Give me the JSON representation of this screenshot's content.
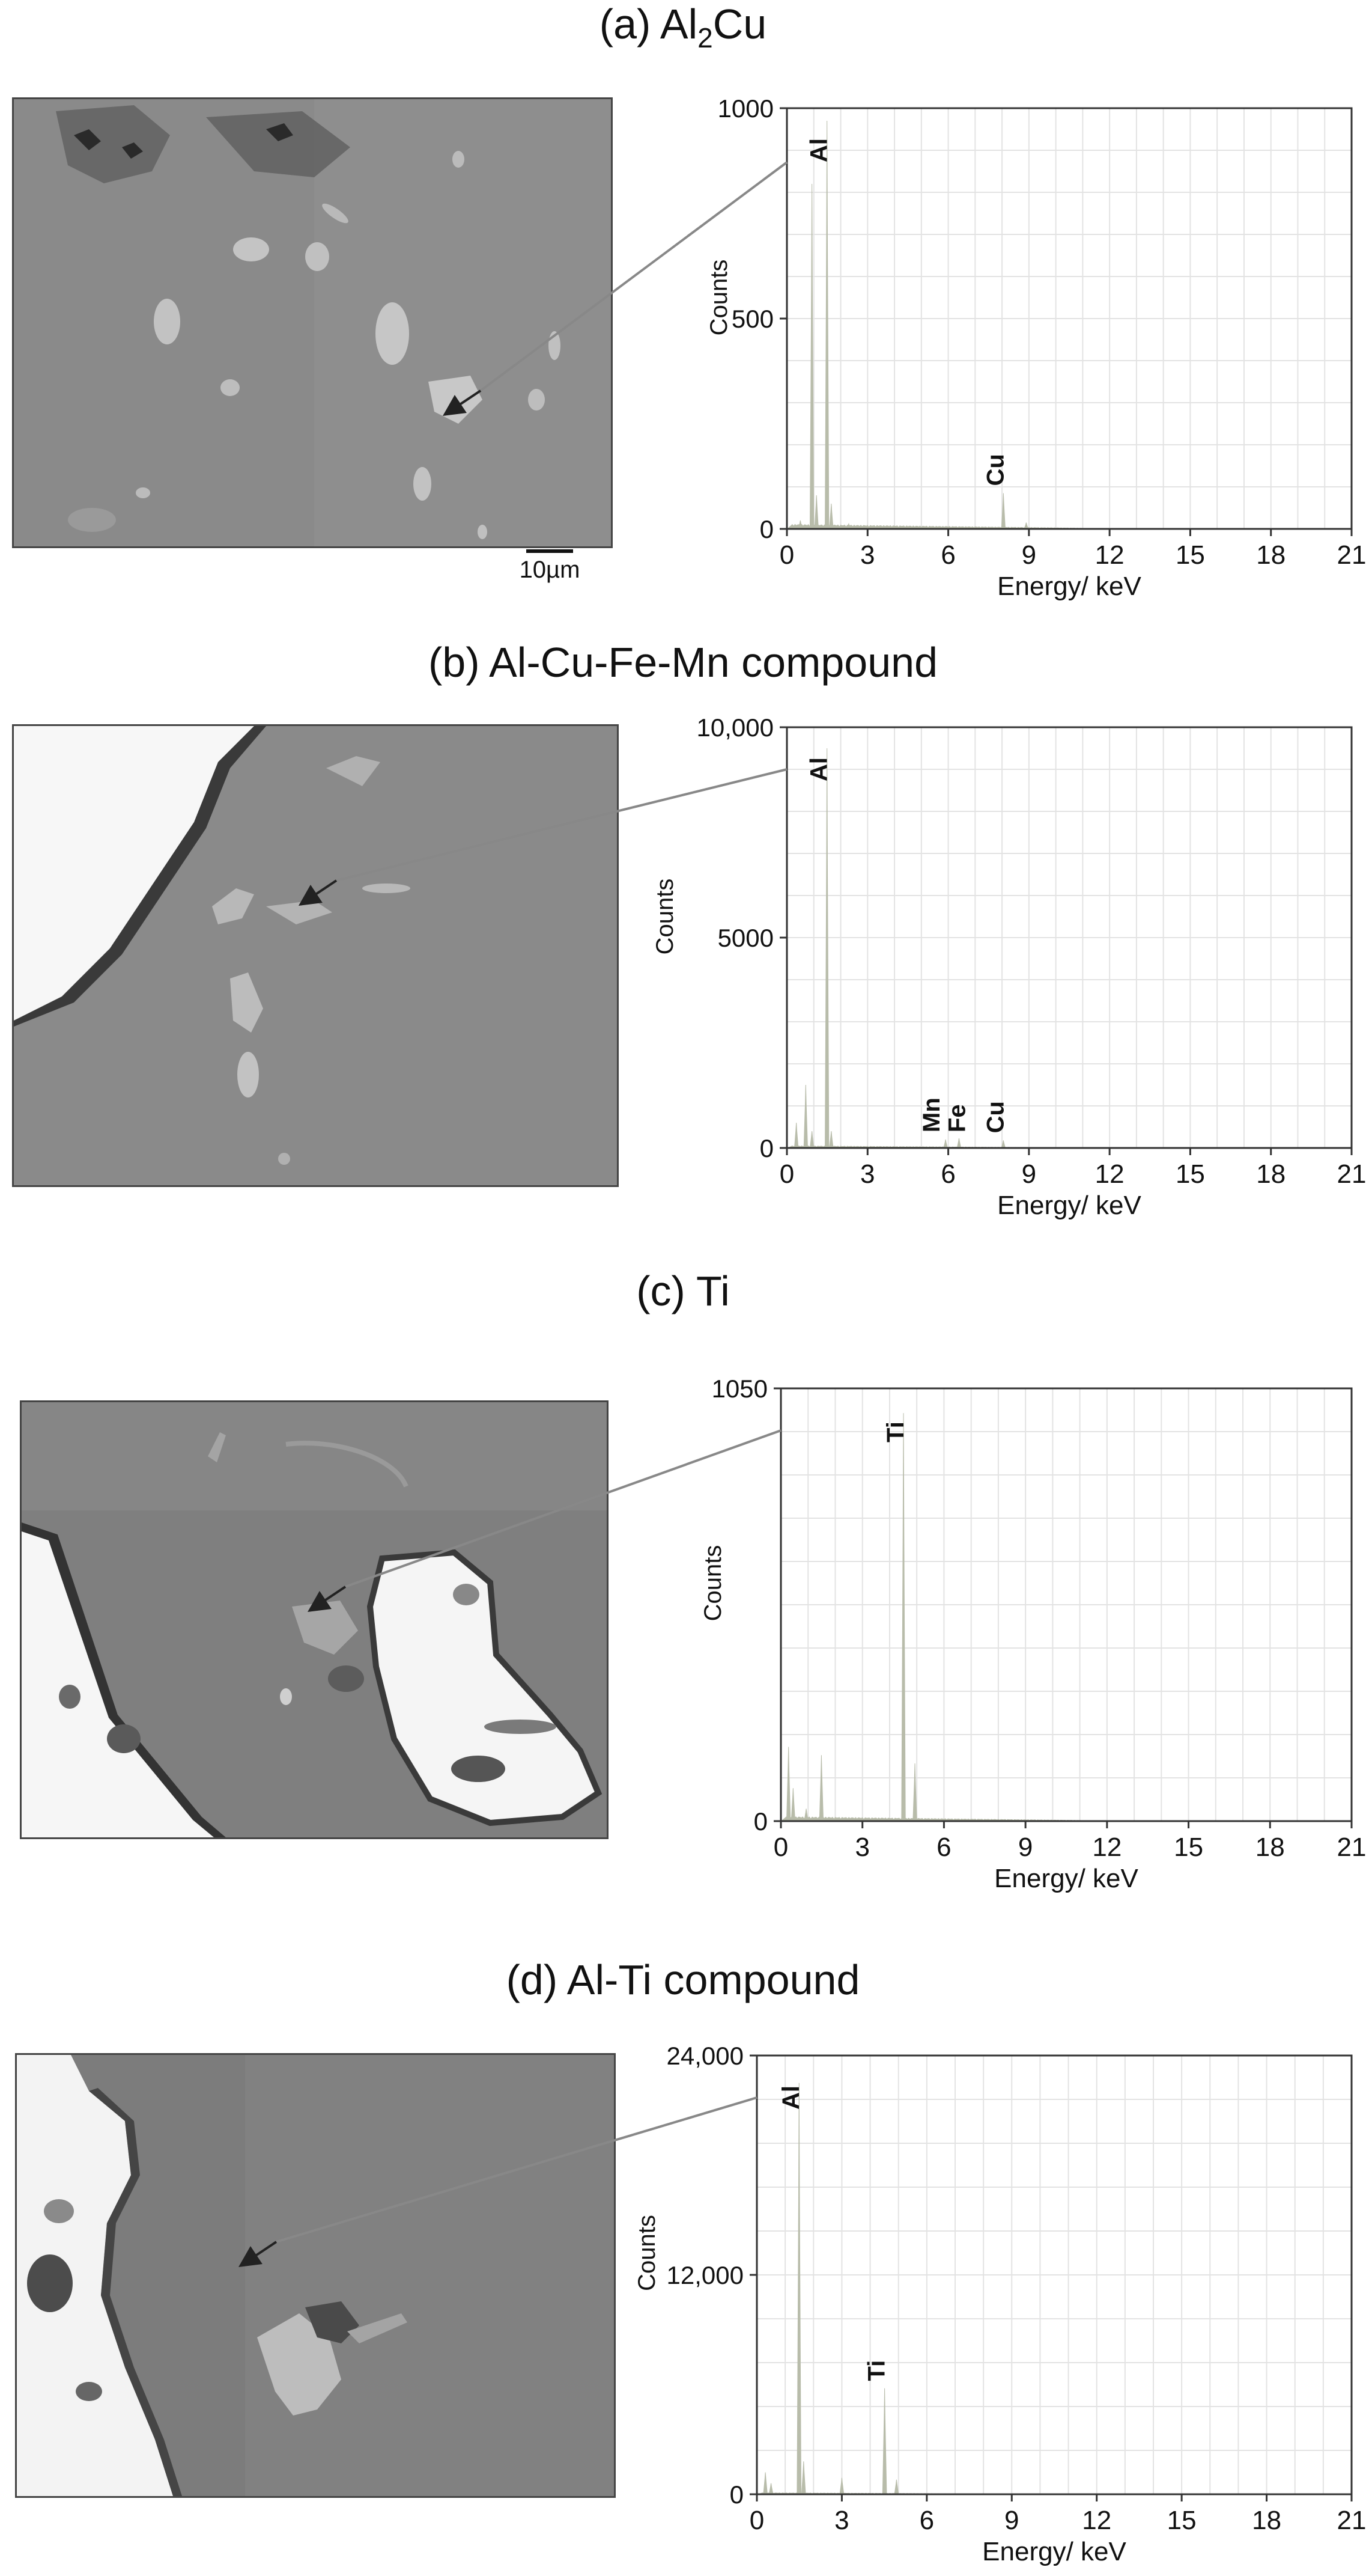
{
  "panels": [
    {
      "label": "(a) Al",
      "sub": "2",
      "label_tail": "Cu"
    },
    {
      "label": "(b) Al-Cu-Fe-Mn compound"
    },
    {
      "label": "(c) Ti"
    },
    {
      "label": "(d) Al-Ti compound"
    }
  ],
  "scalebar": {
    "label": "10µm"
  },
  "colors": {
    "spectrum": "#b8bcaa",
    "grid": "#e3e3e3",
    "axis": "#333333",
    "arrow": "#222222",
    "leader": "#888888"
  },
  "chart_data": [
    {
      "type": "bar",
      "xlabel": "Energy/ keV",
      "ylabel": "Counts",
      "xlim": [
        0,
        21
      ],
      "ylim": [
        0,
        1000
      ],
      "xticks": [
        "0",
        "3",
        "6",
        "9",
        "12",
        "15",
        "18",
        "21"
      ],
      "yticks": [
        {
          "v": 0,
          "t": "0"
        },
        {
          "v": 500,
          "t": "500"
        },
        {
          "v": 1000,
          "t": "1000"
        }
      ],
      "peaks": [
        {
          "x": 0.5,
          "y": 20
        },
        {
          "x": 0.93,
          "y": 820
        },
        {
          "x": 1.1,
          "y": 80
        },
        {
          "x": 1.49,
          "y": 970
        },
        {
          "x": 1.65,
          "y": 60
        },
        {
          "x": 2.3,
          "y": 12
        },
        {
          "x": 8.05,
          "y": 85
        },
        {
          "x": 8.9,
          "y": 15
        }
      ],
      "baseline": 12,
      "element_labels": [
        {
          "text": "Al",
          "x": 1.49,
          "y": 970
        },
        {
          "text": "Cu",
          "x": 8.05,
          "y": 85
        }
      ]
    },
    {
      "type": "bar",
      "xlabel": "Energy/ keV",
      "ylabel": "Counts",
      "xlim": [
        0,
        21
      ],
      "ylim": [
        0,
        10000
      ],
      "xticks": [
        "0",
        "3",
        "6",
        "9",
        "12",
        "15",
        "18",
        "21"
      ],
      "yticks": [
        {
          "v": 0,
          "t": "0"
        },
        {
          "v": 5000,
          "t": "5000"
        },
        {
          "v": 10000,
          "t": "10,000"
        }
      ],
      "peaks": [
        {
          "x": 0.35,
          "y": 600
        },
        {
          "x": 0.7,
          "y": 1500
        },
        {
          "x": 0.93,
          "y": 400
        },
        {
          "x": 1.49,
          "y": 9500
        },
        {
          "x": 1.65,
          "y": 400
        },
        {
          "x": 5.9,
          "y": 200
        },
        {
          "x": 6.4,
          "y": 230
        },
        {
          "x": 8.05,
          "y": 180
        }
      ],
      "baseline": 60,
      "element_labels": [
        {
          "text": "Al",
          "x": 1.49,
          "y": 9500
        },
        {
          "text": "Mn",
          "x": 5.9,
          "y": 200
        },
        {
          "text": "Fe",
          "x": 6.4,
          "y": 200
        },
        {
          "text": "Cu",
          "x": 8.05,
          "y": 180
        }
      ]
    },
    {
      "type": "bar",
      "xlabel": "Energy/ keV",
      "ylabel": "Counts",
      "xlim": [
        0,
        21
      ],
      "ylim": [
        0,
        1050
      ],
      "xticks": [
        "0",
        "3",
        "6",
        "9",
        "12",
        "15",
        "18",
        "21"
      ],
      "yticks": [
        {
          "v": 0,
          "t": "0"
        },
        {
          "v": 1050,
          "t": "1050"
        }
      ],
      "peaks": [
        {
          "x": 0.28,
          "y": 180
        },
        {
          "x": 0.45,
          "y": 80
        },
        {
          "x": 0.93,
          "y": 30
        },
        {
          "x": 1.49,
          "y": 160
        },
        {
          "x": 4.51,
          "y": 990
        },
        {
          "x": 4.93,
          "y": 140
        }
      ],
      "baseline": 12,
      "element_labels": [
        {
          "text": "Ti",
          "x": 4.51,
          "y": 990
        }
      ]
    },
    {
      "type": "bar",
      "xlabel": "Energy/ keV",
      "ylabel": "Counts",
      "xlim": [
        0,
        21
      ],
      "ylim": [
        0,
        24000
      ],
      "xticks": [
        "0",
        "3",
        "6",
        "9",
        "12",
        "15",
        "18",
        "21"
      ],
      "yticks": [
        {
          "v": 0,
          "t": "0"
        },
        {
          "v": 12000,
          "t": "12,000"
        },
        {
          "v": 24000,
          "t": "24,000"
        }
      ],
      "peaks": [
        {
          "x": 0.3,
          "y": 1200
        },
        {
          "x": 0.5,
          "y": 600
        },
        {
          "x": 1.49,
          "y": 22500
        },
        {
          "x": 1.65,
          "y": 1800
        },
        {
          "x": 3.0,
          "y": 900
        },
        {
          "x": 4.51,
          "y": 5800
        },
        {
          "x": 4.93,
          "y": 800
        }
      ],
      "baseline": 100,
      "element_labels": [
        {
          "text": "Al",
          "x": 1.49,
          "y": 22500
        },
        {
          "text": "Ti",
          "x": 4.51,
          "y": 5800
        }
      ]
    }
  ]
}
